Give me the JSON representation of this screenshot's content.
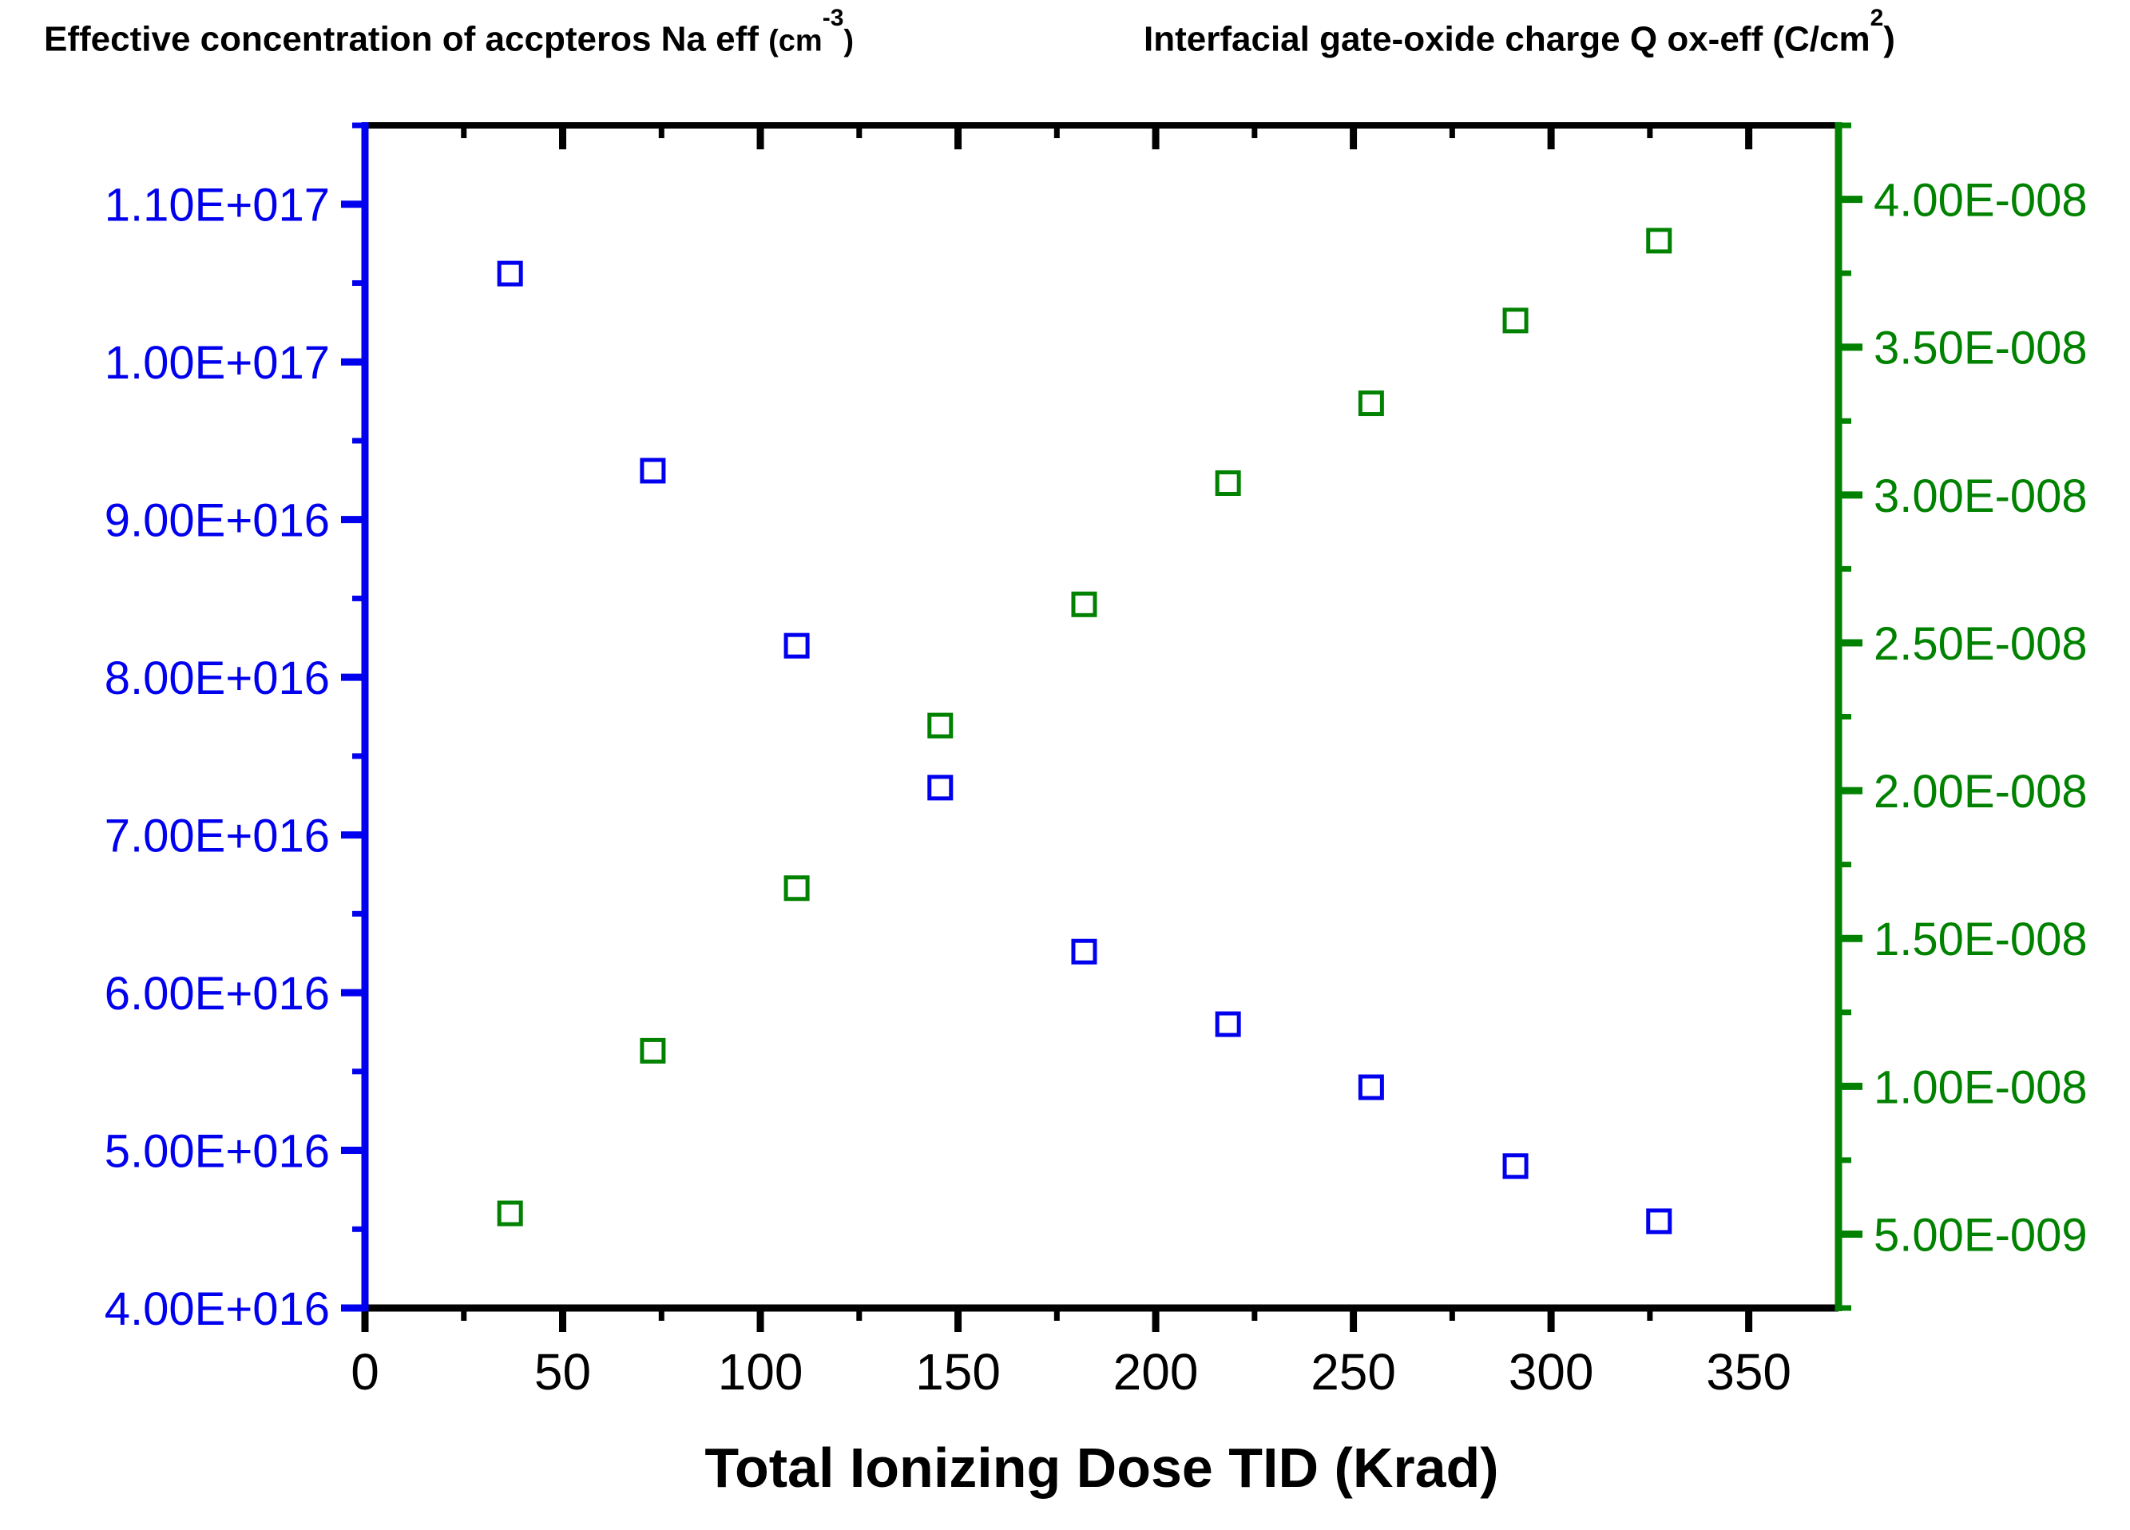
{
  "chart_data": {
    "type": "scatter",
    "grid": false,
    "legend": "none",
    "xlabel": "Total Ionizing Dose TID (Krad)",
    "xlim": [
      0,
      372.7
    ],
    "x_ticks_major": [
      0,
      50,
      100,
      150,
      200,
      250,
      300,
      350
    ],
    "x_tick_labels": [
      "0",
      "50",
      "100",
      "150",
      "200",
      "250",
      "300",
      "350"
    ],
    "x_minor_step": 25,
    "axes": {
      "left": {
        "title_text": "Effective concentration of accpteros Na eff ",
        "title_paren": "(cm",
        "title_sup": "-3",
        "title_close": ")",
        "color": "#0000EE",
        "lim": [
          4e+16,
          1.15e+17
        ],
        "tick_values": [
          4e+16,
          5e+16,
          6e+16,
          7e+16,
          8e+16,
          9e+16,
          1e+17,
          1.1e+17
        ],
        "tick_labels": [
          "4.00E+016",
          "5.00E+016",
          "6.00E+016",
          "7.00E+016",
          "8.00E+016",
          "9.00E+016",
          "1.00E+017",
          "1.10E+017"
        ],
        "minor_step": 5000000000000000.0
      },
      "right": {
        "title_text": "Interfacial gate-oxide charge Q ox-eff ",
        "title_paren": "(C/cm",
        "title_sup": "2",
        "title_close": ")",
        "color": "#008200",
        "lim": [
          2.5e-09,
          4.25e-08
        ],
        "tick_values": [
          5e-09,
          1e-08,
          1.5e-08,
          2e-08,
          2.5e-08,
          3e-08,
          3.5e-08,
          4e-08
        ],
        "tick_labels": [
          "5.00E-009",
          "1.00E-008",
          "1.50E-008",
          "2.00E-008",
          "2.50E-008",
          "3.00E-008",
          "3.50E-008",
          "4.00E-008"
        ],
        "minor_step": 2.5e-09
      }
    },
    "x": [
      36.7,
      72.8,
      109.2,
      145.5,
      181.9,
      218.3,
      254.5,
      291.0,
      327.3
    ],
    "series": [
      {
        "name": "Na eff (effective acceptor concentration)",
        "axis": "left",
        "marker": "open-square",
        "color": "#0000EE",
        "values": [
          1.056e+17,
          9.31e+16,
          8.2e+16,
          7.3e+16,
          6.26e+16,
          5.8e+16,
          5.4e+16,
          4.9e+16,
          4.55e+16
        ]
      },
      {
        "name": "Q ox-eff (interfacial gate-oxide charge)",
        "axis": "right",
        "marker": "open-square",
        "color": "#008200",
        "values": [
          5.7e-09,
          1.12e-08,
          1.67e-08,
          2.22e-08,
          2.63e-08,
          3.04e-08,
          3.31e-08,
          3.59e-08,
          3.86e-08
        ]
      }
    ],
    "frame_color": "#000000"
  }
}
